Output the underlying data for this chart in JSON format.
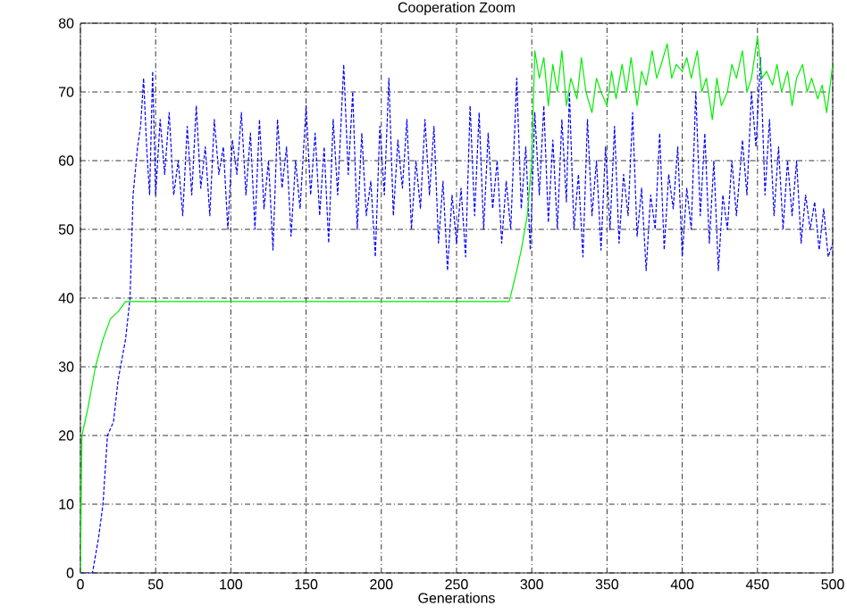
{
  "chart_data": {
    "type": "line",
    "title": "Cooperation Zoom",
    "xlabel": "Generations",
    "xlim": [
      0,
      500
    ],
    "ylim": [
      0,
      80
    ],
    "xticks": [
      0,
      50,
      100,
      150,
      200,
      250,
      300,
      350,
      400,
      450,
      500
    ],
    "yticks": [
      0,
      10,
      20,
      30,
      40,
      50,
      60,
      70,
      80
    ],
    "grid": true,
    "marker": "none",
    "series": [
      {
        "color": "#0000ff",
        "line_style": "dashed",
        "x": [
          0,
          8,
          12,
          15,
          18,
          22,
          25,
          30,
          33,
          35,
          38,
          40,
          42,
          44,
          46,
          48,
          50,
          53,
          56,
          59,
          62,
          65,
          68,
          71,
          74,
          77,
          80,
          83,
          86,
          89,
          92,
          95,
          98,
          101,
          104,
          107,
          110,
          113,
          116,
          119,
          122,
          125,
          128,
          131,
          134,
          137,
          140,
          143,
          146,
          150,
          153,
          156,
          159,
          162,
          165,
          168,
          171,
          175,
          178,
          181,
          184,
          187,
          190,
          193,
          196,
          199,
          202,
          205,
          208,
          211,
          214,
          217,
          220,
          223,
          226,
          229,
          232,
          235,
          238,
          241,
          244,
          247,
          250,
          253,
          256,
          259,
          262,
          265,
          268,
          271,
          274,
          277,
          280,
          283,
          286,
          290,
          293,
          296,
          299,
          302,
          305,
          308,
          311,
          314,
          317,
          320,
          323,
          325,
          328,
          331,
          334,
          337,
          340,
          343,
          346,
          349,
          352,
          355,
          358,
          361,
          364,
          367,
          370,
          373,
          376,
          379,
          382,
          385,
          388,
          391,
          394,
          397,
          400,
          403,
          406,
          409,
          412,
          415,
          418,
          421,
          424,
          427,
          430,
          433,
          436,
          440,
          443,
          446,
          449,
          452,
          455,
          458,
          461,
          464,
          467,
          470,
          473,
          476,
          479,
          482,
          485,
          488,
          491,
          494,
          497,
          500
        ],
        "values": [
          0,
          0,
          5,
          10,
          20,
          22,
          28,
          34,
          40,
          55,
          62,
          65,
          72,
          62,
          55,
          73,
          55,
          66,
          58,
          67,
          55,
          60,
          52,
          65,
          55,
          68,
          56,
          62,
          52,
          66,
          58,
          62,
          50,
          63,
          58,
          67,
          55,
          64,
          50,
          66,
          53,
          60,
          47,
          66,
          56,
          62,
          49,
          60,
          53,
          68,
          55,
          64,
          52,
          62,
          48,
          66,
          55,
          74,
          58,
          70,
          50,
          64,
          52,
          57,
          46,
          65,
          55,
          72,
          52,
          63,
          56,
          66,
          50,
          60,
          53,
          66,
          55,
          65,
          48,
          57,
          44,
          55,
          48,
          56,
          46,
          68,
          52,
          67,
          50,
          64,
          53,
          60,
          48,
          57,
          50,
          72,
          53,
          62,
          47,
          67,
          55,
          68,
          51,
          63,
          50,
          66,
          54,
          70,
          50,
          58,
          46,
          66,
          52,
          60,
          47,
          62,
          50,
          65,
          48,
          58,
          52,
          67,
          49,
          56,
          44,
          55,
          50,
          64,
          47,
          58,
          53,
          62,
          46,
          56,
          50,
          70,
          52,
          64,
          48,
          60,
          44,
          55,
          50,
          60,
          52,
          63,
          55,
          70,
          62,
          75,
          55,
          66,
          52,
          62,
          50,
          60,
          52,
          60,
          48,
          55,
          50,
          54,
          47,
          53,
          46,
          48
        ]
      },
      {
        "color": "#00ee00",
        "line_style": "solid",
        "x": [
          0,
          1,
          5,
          10,
          15,
          20,
          25,
          30,
          35,
          100,
          200,
          285,
          290,
          293,
          297,
          300,
          302,
          305,
          308,
          311,
          314,
          317,
          320,
          323,
          326,
          330,
          333,
          336,
          340,
          343,
          346,
          350,
          353,
          356,
          360,
          363,
          366,
          370,
          373,
          376,
          380,
          383,
          386,
          390,
          393,
          396,
          400,
          403,
          406,
          410,
          413,
          416,
          420,
          423,
          426,
          430,
          433,
          436,
          440,
          443,
          446,
          450,
          453,
          456,
          460,
          463,
          466,
          470,
          473,
          476,
          480,
          483,
          486,
          490,
          493,
          496,
          500
        ],
        "values": [
          0,
          20,
          24,
          30,
          34,
          37,
          38,
          39.5,
          39.5,
          39.5,
          39.5,
          39.5,
          44,
          47,
          52,
          60,
          76,
          72,
          75,
          68,
          74,
          70,
          76,
          68,
          72,
          69,
          75,
          70,
          67,
          72,
          70,
          68,
          73,
          69,
          74,
          70,
          75,
          68,
          73,
          71,
          76,
          72,
          74,
          77,
          72,
          74,
          73,
          75,
          72,
          76,
          70,
          72,
          66,
          72,
          68,
          70,
          74,
          72,
          76,
          70,
          72,
          78,
          72,
          73,
          71,
          74,
          70,
          73,
          68,
          72,
          74,
          70,
          72,
          69,
          71,
          67,
          74
        ]
      }
    ]
  }
}
